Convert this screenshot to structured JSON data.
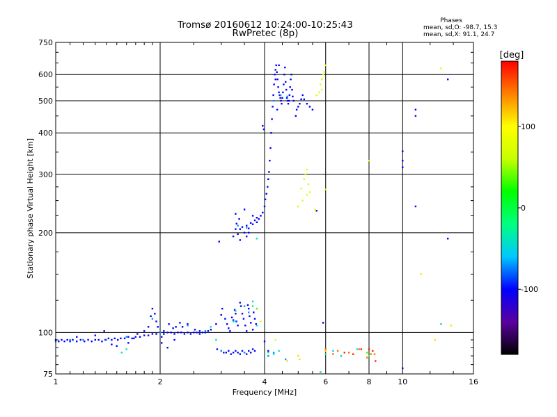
{
  "chart_data": {
    "type": "scatter",
    "title": "Tromsø 20160612 10:24:00-10:25:43",
    "subtitle": "RwPretec (8p)",
    "xlabel": "Frequency [MHz]",
    "ylabel": "Stationary phase Virtual Height [km]",
    "x_scale": "log",
    "y_scale": "log",
    "xlim": [
      1,
      16
    ],
    "ylim": [
      75,
      750
    ],
    "x_ticks": [
      1,
      2,
      4,
      6,
      8,
      10,
      16
    ],
    "x_tick_labels": [
      "1",
      "2",
      "4",
      "6",
      "8",
      "10",
      "16"
    ],
    "y_ticks": [
      75,
      100,
      200,
      300,
      400,
      500,
      600,
      750
    ],
    "y_tick_labels": [
      "75",
      "100",
      "200",
      "300",
      "400",
      "500",
      "600",
      "750"
    ],
    "grid": true,
    "phase_stats": {
      "header": "Phases",
      "o_line": "mean, sd,O: -98.7, 15.3",
      "x_line": "mean, sd,X:  91.1, 24.7"
    },
    "colorbar": {
      "label": "[deg]",
      "ticks": [
        -100,
        0,
        100
      ],
      "tick_labels": [
        "-100",
        "0",
        "100"
      ],
      "range": [
        -180,
        180
      ],
      "colors": [
        "#000000",
        "#5a00a0",
        "#0000ff",
        "#00c8ff",
        "#00ff80",
        "#00ff00",
        "#c8ff00",
        "#ffff00",
        "#ff8000",
        "#ff0000"
      ]
    },
    "series": [
      {
        "phase": -100,
        "points": [
          [
            1.0,
            95
          ],
          [
            1.02,
            94
          ],
          [
            1.04,
            95
          ],
          [
            1.06,
            94
          ],
          [
            1.08,
            95
          ],
          [
            1.1,
            94
          ],
          [
            1.12,
            95
          ],
          [
            1.15,
            94
          ],
          [
            1.18,
            95
          ],
          [
            1.21,
            94
          ],
          [
            1.24,
            95
          ],
          [
            1.27,
            94
          ],
          [
            1.3,
            95
          ],
          [
            1.33,
            95
          ],
          [
            1.36,
            94
          ],
          [
            1.39,
            95
          ],
          [
            1.42,
            96
          ],
          [
            1.45,
            95
          ],
          [
            1.48,
            96
          ],
          [
            1.51,
            95
          ],
          [
            1.54,
            96
          ],
          [
            1.58,
            96
          ],
          [
            1.62,
            97
          ],
          [
            1.66,
            96
          ],
          [
            1.7,
            97
          ],
          [
            1.75,
            97
          ],
          [
            1.8,
            98
          ],
          [
            1.85,
            98
          ],
          [
            1.9,
            99
          ],
          [
            1.95,
            99
          ],
          [
            2.0,
            100
          ],
          [
            2.05,
            99
          ],
          [
            2.1,
            100
          ],
          [
            2.15,
            100
          ],
          [
            2.2,
            99
          ],
          [
            2.25,
            100
          ],
          [
            2.3,
            100
          ],
          [
            2.35,
            99
          ],
          [
            2.4,
            100
          ],
          [
            2.45,
            99
          ],
          [
            2.5,
            100
          ],
          [
            2.55,
            100
          ],
          [
            2.6,
            99
          ],
          [
            2.65,
            100
          ],
          [
            2.7,
            100
          ],
          [
            2.75,
            101
          ],
          [
            2.8,
            102
          ],
          [
            1.15,
            97
          ],
          [
            1.3,
            98
          ],
          [
            1.38,
            101
          ],
          [
            1.45,
            92
          ],
          [
            1.5,
            91
          ],
          [
            1.62,
            93
          ],
          [
            1.68,
            96
          ],
          [
            1.72,
            99
          ],
          [
            1.8,
            101
          ],
          [
            1.85,
            104
          ],
          [
            1.88,
            112
          ],
          [
            1.9,
            118
          ],
          [
            1.93,
            114
          ],
          [
            1.95,
            108
          ],
          [
            1.97,
            104
          ],
          [
            2.02,
            97
          ],
          [
            2.05,
            101
          ],
          [
            2.12,
            106
          ],
          [
            2.18,
            103
          ],
          [
            2.22,
            104
          ],
          [
            2.28,
            107
          ],
          [
            2.32,
            104
          ],
          [
            2.4,
            106
          ],
          [
            2.52,
            102
          ],
          [
            2.6,
            101
          ],
          [
            2.1,
            90
          ],
          [
            2.02,
            93
          ],
          [
            2.2,
            95
          ],
          [
            2.92,
            89
          ],
          [
            3.0,
            88
          ],
          [
            3.05,
            87
          ],
          [
            3.1,
            87
          ],
          [
            3.15,
            88
          ],
          [
            3.2,
            86
          ],
          [
            3.25,
            87
          ],
          [
            3.3,
            88
          ],
          [
            3.35,
            87
          ],
          [
            3.4,
            86
          ],
          [
            3.45,
            88
          ],
          [
            3.5,
            87
          ],
          [
            3.55,
            86
          ],
          [
            3.6,
            88
          ],
          [
            3.65,
            87
          ],
          [
            3.7,
            89
          ],
          [
            3.75,
            88
          ],
          [
            2.9,
            106
          ],
          [
            3.0,
            113
          ],
          [
            3.02,
            118
          ],
          [
            3.08,
            110
          ],
          [
            3.12,
            106
          ],
          [
            3.15,
            103
          ],
          [
            3.18,
            101
          ],
          [
            3.22,
            111
          ],
          [
            3.25,
            109
          ],
          [
            3.28,
            117
          ],
          [
            3.3,
            114
          ],
          [
            3.32,
            108
          ],
          [
            3.35,
            105
          ],
          [
            3.4,
            123
          ],
          [
            3.42,
            120
          ],
          [
            3.45,
            114
          ],
          [
            3.48,
            110
          ],
          [
            3.52,
            105
          ],
          [
            3.55,
            101
          ],
          [
            3.58,
            121
          ],
          [
            3.6,
            118
          ],
          [
            3.62,
            112
          ],
          [
            3.65,
            107
          ],
          [
            3.7,
            102
          ],
          [
            3.72,
            115
          ],
          [
            3.75,
            110
          ],
          [
            3.78,
            106
          ],
          [
            2.96,
            188
          ],
          [
            3.25,
            195
          ],
          [
            3.3,
            205
          ],
          [
            3.32,
            213
          ],
          [
            3.35,
            198
          ],
          [
            3.38,
            220
          ],
          [
            3.4,
            205
          ],
          [
            3.45,
            208
          ],
          [
            3.5,
            200
          ],
          [
            3.55,
            210
          ],
          [
            3.6,
            206
          ],
          [
            3.65,
            214
          ],
          [
            3.7,
            212
          ],
          [
            3.75,
            218
          ],
          [
            3.8,
            215
          ],
          [
            3.85,
            220
          ],
          [
            3.9,
            225
          ],
          [
            3.95,
            230
          ],
          [
            4.0,
            240
          ],
          [
            4.02,
            252
          ],
          [
            4.05,
            262
          ],
          [
            4.08,
            275
          ],
          [
            4.1,
            290
          ],
          [
            4.12,
            305
          ],
          [
            4.14,
            330
          ],
          [
            4.16,
            360
          ],
          [
            4.18,
            400
          ],
          [
            4.2,
            440
          ],
          [
            4.22,
            480
          ],
          [
            4.24,
            520
          ],
          [
            4.26,
            560
          ],
          [
            4.28,
            600
          ],
          [
            4.3,
            620
          ],
          [
            4.32,
            640
          ],
          [
            4.34,
            610
          ],
          [
            4.36,
            580
          ],
          [
            4.38,
            550
          ],
          [
            4.4,
            530
          ],
          [
            4.42,
            520
          ],
          [
            4.44,
            510
          ],
          [
            4.46,
            500
          ],
          [
            4.48,
            490
          ],
          [
            4.5,
            510
          ],
          [
            4.52,
            530
          ],
          [
            4.54,
            560
          ],
          [
            4.56,
            600
          ],
          [
            4.58,
            630
          ],
          [
            4.6,
            570
          ],
          [
            4.62,
            540
          ],
          [
            4.64,
            510
          ],
          [
            4.66,
            500
          ],
          [
            4.68,
            490
          ],
          [
            4.7,
            500
          ],
          [
            4.72,
            520
          ],
          [
            4.74,
            550
          ],
          [
            4.76,
            580
          ],
          [
            4.78,
            600
          ],
          [
            4.8,
            540
          ],
          [
            4.82,
            515
          ],
          [
            4.85,
            500
          ],
          [
            4.92,
            450
          ],
          [
            4.95,
            470
          ],
          [
            5.0,
            480
          ],
          [
            5.05,
            490
          ],
          [
            5.1,
            505
          ],
          [
            5.15,
            520
          ],
          [
            5.2,
            505
          ],
          [
            5.3,
            490
          ],
          [
            5.4,
            480
          ],
          [
            5.5,
            470
          ],
          [
            3.98,
            410
          ],
          [
            3.95,
            420
          ],
          [
            4.4,
            640
          ],
          [
            4.3,
            580
          ],
          [
            4.35,
            470
          ],
          [
            3.3,
            228
          ],
          [
            3.5,
            235
          ],
          [
            3.7,
            225
          ],
          [
            3.8,
            222
          ],
          [
            3.6,
            200
          ],
          [
            3.4,
            190
          ],
          [
            3.55,
            195
          ],
          [
            5.65,
            233
          ],
          [
            5.9,
            107
          ],
          [
            10.9,
            450
          ],
          [
            10.9,
            470
          ],
          [
            10.9,
            240
          ],
          [
            10.0,
            352
          ],
          [
            10.0,
            315
          ],
          [
            10.0,
            330
          ],
          [
            13.5,
            580
          ],
          [
            13.5,
            192
          ],
          [
            4.0,
            94
          ],
          [
            4.1,
            88
          ],
          [
            10.0,
            78
          ]
        ]
      },
      {
        "phase": -70,
        "points": [
          [
            1.0,
            94
          ],
          [
            1.1,
            95
          ],
          [
            1.2,
            95
          ],
          [
            1.4,
            95
          ],
          [
            1.6,
            97
          ],
          [
            2.0,
            100
          ],
          [
            2.7,
            101
          ],
          [
            3.0,
            88
          ],
          [
            3.5,
            87
          ],
          [
            3.3,
            108
          ],
          [
            3.5,
            120
          ],
          [
            3.6,
            115
          ],
          [
            2.4,
            105
          ],
          [
            1.9,
            110
          ],
          [
            3.35,
            210
          ],
          [
            3.55,
            207
          ],
          [
            4.25,
            500
          ],
          [
            4.45,
            520
          ],
          [
            4.65,
            515
          ],
          [
            4.1,
            85
          ],
          [
            4.6,
            83
          ],
          [
            4.25,
            87
          ]
        ]
      },
      {
        "phase": -45,
        "points": [
          [
            1.55,
            87
          ],
          [
            1.6,
            89
          ],
          [
            2.8,
            104
          ],
          [
            3.7,
            124
          ],
          [
            3.8,
            105
          ],
          [
            4.1,
            87
          ],
          [
            4.25,
            86
          ],
          [
            4.4,
            88
          ],
          [
            5.8,
            76
          ],
          [
            6.3,
            88
          ],
          [
            6.65,
            85
          ],
          [
            12.9,
            106
          ],
          [
            7.4,
            89
          ],
          [
            3.8,
            192
          ],
          [
            3.25,
            108
          ],
          [
            2.9,
            95
          ]
        ]
      },
      {
        "phase": -10,
        "points": [
          [
            3.7,
            120
          ],
          [
            3.3,
            116
          ],
          [
            6.0,
            86
          ]
        ]
      },
      {
        "phase": 30,
        "points": [
          [
            3.8,
            118
          ],
          [
            7.9,
            87
          ],
          [
            8.0,
            85
          ]
        ]
      },
      {
        "phase": 75,
        "points": [
          [
            4.3,
            95
          ],
          [
            3.9,
            108
          ],
          [
            5.1,
            272
          ],
          [
            5.2,
            290
          ],
          [
            5.25,
            300
          ],
          [
            5.3,
            310
          ],
          [
            5.35,
            280
          ],
          [
            5.4,
            265
          ],
          [
            5.3,
            260
          ],
          [
            5.0,
            240
          ],
          [
            5.15,
            250
          ],
          [
            5.6,
            235
          ],
          [
            5.8,
            560
          ],
          [
            5.9,
            600
          ],
          [
            5.95,
            610
          ],
          [
            6.0,
            640
          ],
          [
            5.85,
            580
          ],
          [
            5.75,
            530
          ],
          [
            5.65,
            520
          ],
          [
            5.85,
            540
          ],
          [
            6.0,
            270
          ],
          [
            12.9,
            626
          ],
          [
            8.0,
            330
          ]
        ]
      },
      {
        "phase": 110,
        "points": [
          [
            4.65,
            82
          ],
          [
            5.0,
            85
          ],
          [
            5.05,
            83
          ],
          [
            6.0,
            88
          ],
          [
            11.3,
            150
          ],
          [
            13.8,
            105
          ],
          [
            12.4,
            95
          ]
        ]
      },
      {
        "phase": 145,
        "points": [
          [
            6.0,
            89
          ],
          [
            6.5,
            88
          ],
          [
            7.0,
            87
          ],
          [
            7.5,
            89
          ],
          [
            8.1,
            86
          ],
          [
            8.3,
            86
          ],
          [
            7.9,
            84
          ],
          [
            6.3,
            86
          ]
        ]
      },
      {
        "phase": 170,
        "points": [
          [
            7.2,
            86
          ],
          [
            7.6,
            89
          ],
          [
            8.2,
            88
          ],
          [
            8.0,
            89
          ],
          [
            8.35,
            82
          ],
          [
            6.8,
            87
          ]
        ]
      }
    ]
  }
}
